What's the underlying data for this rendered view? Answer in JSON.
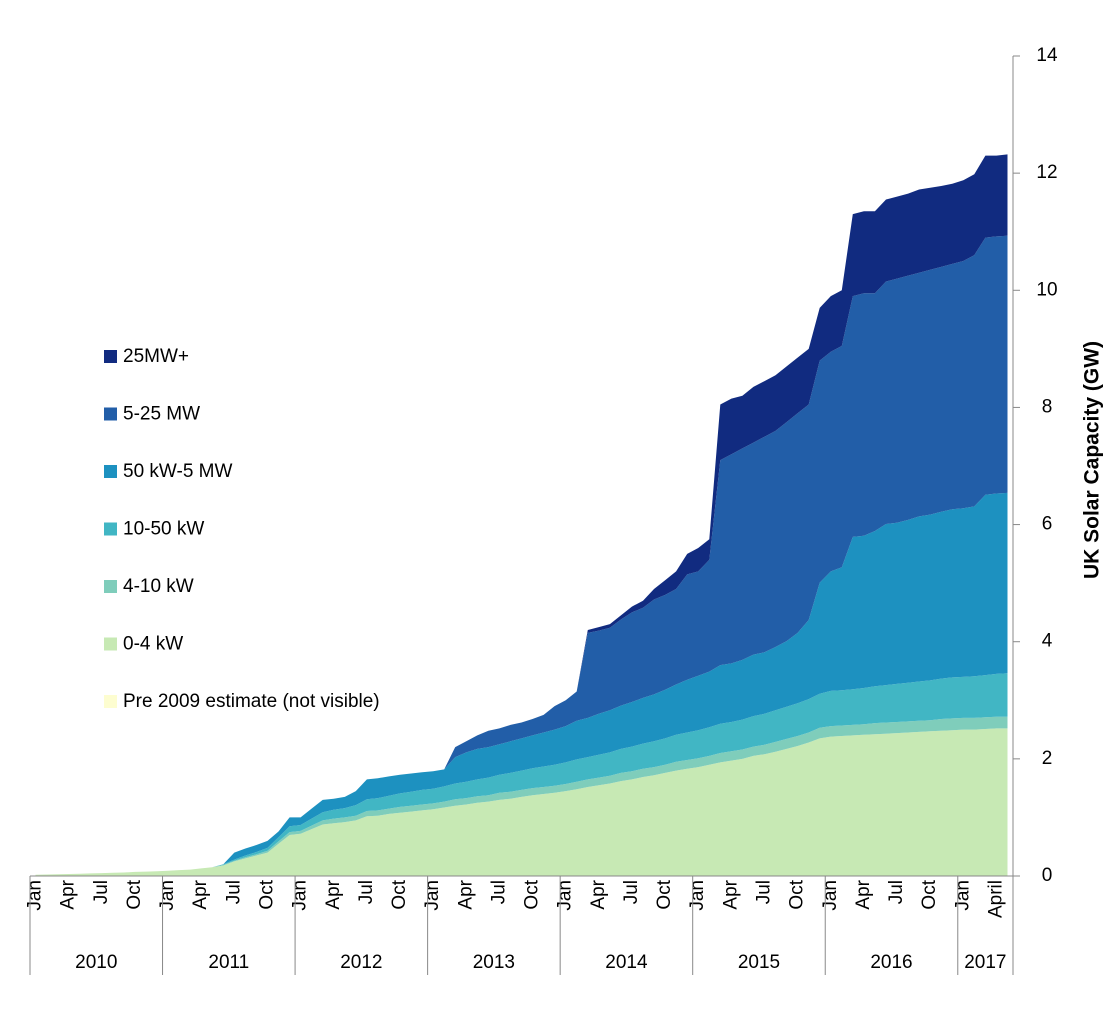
{
  "chart_data": {
    "type": "stacked_area",
    "y_label": "UK Solar Capacity (GW)",
    "ylim": [
      0,
      14
    ],
    "yticks": [
      0,
      2,
      4,
      6,
      8,
      10,
      12,
      14
    ],
    "y_axis_side": "right",
    "grid": false,
    "legend": "left",
    "categories": [
      "Jan",
      null,
      null,
      "Apr",
      null,
      null,
      "Jul",
      null,
      null,
      "Oct",
      null,
      null,
      "Jan",
      null,
      null,
      "Apr",
      null,
      null,
      "Jul",
      null,
      null,
      "Oct",
      null,
      null,
      "Jan",
      null,
      null,
      "Apr",
      null,
      null,
      "Jul",
      null,
      null,
      "Oct",
      null,
      null,
      "Jan",
      null,
      null,
      "Apr",
      null,
      null,
      "Jul",
      null,
      null,
      "Oct",
      null,
      null,
      "Jan",
      null,
      null,
      "Apr",
      null,
      null,
      "Jul",
      null,
      null,
      "Oct",
      null,
      null,
      "Jan",
      null,
      null,
      "Apr",
      null,
      null,
      "Jul",
      null,
      null,
      "Oct",
      null,
      null,
      "Jan",
      null,
      null,
      "Apr",
      null,
      null,
      "Jul",
      null,
      null,
      "Oct",
      null,
      null,
      "Jan",
      null,
      null,
      "April",
      null
    ],
    "year_labels": [
      "2010",
      "2011",
      "2012",
      "2013",
      "2014",
      "2015",
      "2016",
      "2017"
    ],
    "series": [
      {
        "name": "Pre 2009 estimate (not visible)",
        "color": "#fdfdd0",
        "values": [
          0,
          0,
          0,
          0,
          0,
          0,
          0,
          0,
          0,
          0,
          0,
          0,
          0,
          0,
          0,
          0,
          0,
          0,
          0,
          0,
          0,
          0,
          0,
          0,
          0,
          0,
          0,
          0,
          0,
          0,
          0,
          0,
          0,
          0,
          0,
          0,
          0,
          0,
          0,
          0,
          0,
          0,
          0,
          0,
          0,
          0,
          0,
          0,
          0,
          0,
          0,
          0,
          0,
          0,
          0,
          0,
          0,
          0,
          0,
          0,
          0,
          0,
          0,
          0,
          0,
          0,
          0,
          0,
          0,
          0,
          0,
          0,
          0,
          0,
          0,
          0,
          0,
          0,
          0,
          0,
          0,
          0,
          0,
          0,
          0,
          0,
          0,
          0,
          0
        ]
      },
      {
        "name": "0-4 kW",
        "color": "#c7e9b4",
        "values": [
          0.02,
          0.025,
          0.03,
          0.035,
          0.04,
          0.045,
          0.05,
          0.055,
          0.06,
          0.07,
          0.075,
          0.08,
          0.09,
          0.1,
          0.11,
          0.13,
          0.15,
          0.18,
          0.25,
          0.3,
          0.35,
          0.4,
          0.55,
          0.7,
          0.72,
          0.8,
          0.88,
          0.9,
          0.92,
          0.95,
          1.02,
          1.03,
          1.06,
          1.08,
          1.1,
          1.12,
          1.14,
          1.17,
          1.2,
          1.22,
          1.25,
          1.27,
          1.3,
          1.32,
          1.35,
          1.38,
          1.4,
          1.42,
          1.45,
          1.48,
          1.52,
          1.55,
          1.58,
          1.62,
          1.65,
          1.69,
          1.72,
          1.76,
          1.8,
          1.83,
          1.86,
          1.9,
          1.94,
          1.97,
          2.0,
          2.05,
          2.08,
          2.12,
          2.17,
          2.22,
          2.28,
          2.35,
          2.38,
          2.39,
          2.4,
          2.41,
          2.42,
          2.43,
          2.44,
          2.45,
          2.46,
          2.47,
          2.48,
          2.49,
          2.5,
          2.5,
          2.51,
          2.52,
          2.52
        ]
      },
      {
        "name": "4-10 kW",
        "color": "#7fcdbb",
        "values": [
          0,
          0,
          0,
          0,
          0,
          0,
          0,
          0,
          0,
          0,
          0,
          0,
          0,
          0,
          0,
          0,
          0,
          0.01,
          0.01,
          0.02,
          0.02,
          0.03,
          0.04,
          0.05,
          0.05,
          0.06,
          0.07,
          0.08,
          0.08,
          0.08,
          0.09,
          0.09,
          0.09,
          0.1,
          0.1,
          0.1,
          0.1,
          0.1,
          0.11,
          0.11,
          0.11,
          0.11,
          0.12,
          0.12,
          0.12,
          0.12,
          0.12,
          0.12,
          0.12,
          0.13,
          0.13,
          0.13,
          0.13,
          0.14,
          0.14,
          0.14,
          0.14,
          0.14,
          0.15,
          0.15,
          0.15,
          0.15,
          0.16,
          0.16,
          0.16,
          0.16,
          0.16,
          0.17,
          0.17,
          0.17,
          0.17,
          0.18,
          0.18,
          0.18,
          0.18,
          0.18,
          0.19,
          0.19,
          0.19,
          0.19,
          0.19,
          0.19,
          0.2,
          0.2,
          0.2,
          0.2,
          0.2,
          0.2,
          0.2
        ]
      },
      {
        "name": "10-50 kW",
        "color": "#41b6c4",
        "values": [
          0,
          0,
          0,
          0,
          0,
          0,
          0,
          0,
          0,
          0,
          0,
          0,
          0,
          0,
          0,
          0,
          0,
          0.01,
          0.02,
          0.03,
          0.04,
          0.05,
          0.07,
          0.1,
          0.1,
          0.12,
          0.14,
          0.15,
          0.16,
          0.18,
          0.2,
          0.21,
          0.22,
          0.23,
          0.24,
          0.25,
          0.25,
          0.26,
          0.27,
          0.28,
          0.29,
          0.3,
          0.31,
          0.32,
          0.33,
          0.34,
          0.35,
          0.36,
          0.37,
          0.38,
          0.38,
          0.39,
          0.4,
          0.41,
          0.42,
          0.43,
          0.44,
          0.45,
          0.46,
          0.47,
          0.48,
          0.49,
          0.5,
          0.5,
          0.51,
          0.52,
          0.53,
          0.54,
          0.55,
          0.56,
          0.57,
          0.58,
          0.6,
          0.6,
          0.61,
          0.62,
          0.63,
          0.64,
          0.65,
          0.66,
          0.67,
          0.68,
          0.69,
          0.7,
          0.7,
          0.71,
          0.72,
          0.73,
          0.74
        ]
      },
      {
        "name": "50 kW-5 MW",
        "color": "#1d91c0",
        "values": [
          0,
          0,
          0,
          0,
          0,
          0,
          0,
          0,
          0,
          0,
          0,
          0,
          0,
          0,
          0,
          0,
          0,
          0,
          0.12,
          0.12,
          0.12,
          0.12,
          0.1,
          0.15,
          0.13,
          0.17,
          0.21,
          0.19,
          0.19,
          0.24,
          0.34,
          0.34,
          0.33,
          0.32,
          0.31,
          0.3,
          0.3,
          0.29,
          0.45,
          0.5,
          0.52,
          0.52,
          0.52,
          0.54,
          0.55,
          0.56,
          0.58,
          0.6,
          0.62,
          0.66,
          0.67,
          0.7,
          0.72,
          0.74,
          0.76,
          0.78,
          0.8,
          0.83,
          0.86,
          0.9,
          0.93,
          0.95,
          1.0,
          1.0,
          1.02,
          1.05,
          1.05,
          1.08,
          1.12,
          1.2,
          1.35,
          1.9,
          2.04,
          2.1,
          2.6,
          2.6,
          2.65,
          2.75,
          2.75,
          2.78,
          2.82,
          2.83,
          2.85,
          2.87,
          2.88,
          2.9,
          3.08,
          3.08,
          3.08
        ]
      },
      {
        "name": "5-25 MW",
        "color": "#225ea8",
        "values": [
          0,
          0,
          0,
          0,
          0,
          0,
          0,
          0,
          0,
          0,
          0,
          0,
          0,
          0,
          0,
          0,
          0,
          0,
          0,
          0,
          0,
          0,
          0,
          0,
          0,
          0,
          0,
          0,
          0,
          0,
          0,
          0,
          0,
          0,
          0,
          0,
          0,
          0,
          0.17,
          0.19,
          0.23,
          0.28,
          0.27,
          0.28,
          0.27,
          0.28,
          0.3,
          0.4,
          0.44,
          0.5,
          1.45,
          1.42,
          1.41,
          1.47,
          1.53,
          1.54,
          1.62,
          1.62,
          1.63,
          1.8,
          1.78,
          1.91,
          3.5,
          3.57,
          3.61,
          3.62,
          3.68,
          3.69,
          3.74,
          3.75,
          3.68,
          3.79,
          3.75,
          3.78,
          4.11,
          4.14,
          4.06,
          4.14,
          4.17,
          4.17,
          4.16,
          4.18,
          4.18,
          4.19,
          4.22,
          4.29,
          4.39,
          4.39,
          4.39
        ]
      },
      {
        "name": "25MW+",
        "color": "#112b80",
        "values": [
          0,
          0,
          0,
          0,
          0,
          0,
          0,
          0,
          0,
          0,
          0,
          0,
          0,
          0,
          0,
          0,
          0,
          0,
          0,
          0,
          0,
          0,
          0,
          0,
          0,
          0,
          0,
          0,
          0,
          0,
          0,
          0,
          0,
          0,
          0,
          0,
          0,
          0,
          0,
          0,
          0,
          0,
          0,
          0,
          0,
          0,
          0,
          0,
          0,
          0,
          0.05,
          0.06,
          0.06,
          0.07,
          0.1,
          0.12,
          0.18,
          0.25,
          0.3,
          0.35,
          0.4,
          0.35,
          0.95,
          0.95,
          0.9,
          0.95,
          0.95,
          0.95,
          0.95,
          0.95,
          0.95,
          0.9,
          0.95,
          0.95,
          1.4,
          1.4,
          1.4,
          1.4,
          1.4,
          1.4,
          1.42,
          1.4,
          1.38,
          1.37,
          1.38,
          1.38,
          1.4,
          1.38,
          1.39
        ]
      }
    ]
  }
}
